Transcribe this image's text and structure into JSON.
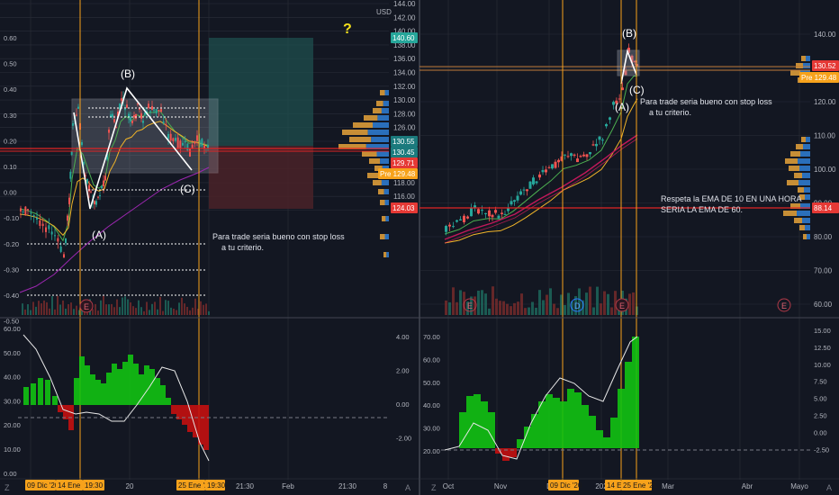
{
  "colors": {
    "background": "#131722",
    "grid": "#2a2e39",
    "panel_divider": "#434651",
    "axis_text": "#b2b5be",
    "vline": "#f7a21b",
    "red_line": "#e02424",
    "candle_up": "#26a69a",
    "candle_down": "#ef5350",
    "ema_fast": "#4caf50",
    "ema_mid": "#f0b429",
    "ema_slow": "#c2185b",
    "ema_purple": "#9c27b0",
    "osc_up": "#12c212",
    "osc_down": "#c41010",
    "osc_line": "#e8e8e8",
    "label_green": "#26a69a",
    "label_red": "#e53935",
    "label_orange": "#f7a21b",
    "label_teal": "#1b7a7d",
    "label_brown": "#c17b3a",
    "question_mark": "#f5e11b"
  },
  "left_chart": {
    "price_axis": {
      "currency": "USD",
      "ticks": [
        "144.00",
        "142.00",
        "140.00",
        "138.00",
        "136.00",
        "134.00",
        "132.00",
        "130.00",
        "128.00",
        "126.00",
        "124.00",
        "122.00",
        "120.00",
        "118.00",
        "116.00",
        "114.00"
      ]
    },
    "left_axis_ticks": [
      "0.60",
      "0.50",
      "0.40",
      "0.30",
      "0.20",
      "0.10",
      "0.00",
      "-0.10",
      "-0.20",
      "-0.30",
      "-0.40",
      "-0.50"
    ],
    "price_labels": [
      "140.60",
      "130.55",
      "130.45",
      "129.71",
      "129.48",
      "124.03"
    ],
    "pre_tag": "Pre",
    "wave_labels": [
      "(A)",
      "(B)",
      "(C)"
    ],
    "earnings_tag": "E",
    "annotation": [
      "Para trade seria bueno con stop loss",
      "a tu criterio."
    ],
    "question": "?",
    "osc_left_ticks": [
      "60.00",
      "50.00",
      "40.00",
      "30.00",
      "20.00",
      "10.00",
      "0.00"
    ],
    "osc_right_ticks": [
      "4.00",
      "2.00",
      "0.00",
      "-2.00"
    ],
    "time_labels": [
      "20",
      "21:30",
      "Feb",
      "21:30",
      "8"
    ],
    "time_tags": [
      "09 Dic '20",
      "14 Ene '21",
      "19:30",
      "25 Ene '21",
      "19:30"
    ]
  },
  "right_chart": {
    "price_axis": {
      "ticks": [
        "140.00",
        "130.00",
        "120.00",
        "110.00",
        "100.00",
        "90.00",
        "80.00",
        "70.00",
        "60.00"
      ]
    },
    "price_labels": [
      "130.52",
      "129.48",
      "88.14"
    ],
    "pre_tag": "Pre",
    "wave_labels": [
      "(B)",
      "(A)",
      "(C)"
    ],
    "annotation": [
      "Para trade seria bueno con stop loss",
      "a tu criterio."
    ],
    "annotation2": [
      "Respeta la EMA DE 10 EN UNA HORA",
      "SERIA LA EMA DE 60."
    ],
    "event_tags": [
      "E",
      "D",
      "E",
      "E"
    ],
    "osc_left_ticks": [
      "70.00",
      "60.00",
      "50.00",
      "40.00",
      "30.00",
      "20.00"
    ],
    "osc_right_ticks": [
      "15.00",
      "12.50",
      "10.00",
      "7.50",
      "5.00",
      "2.50",
      "0.00",
      "-2.50"
    ],
    "time_labels": [
      "Oct",
      "Nov",
      "D",
      "202",
      "Mar",
      "Abr",
      "Mayo"
    ],
    "time_tags": [
      "09 Dic '20",
      "14 E",
      "25 Ene '21"
    ]
  },
  "axis_icons": [
    "zoom-icon",
    "auto-scale-icon"
  ],
  "axis_icon_glyphs": [
    "Z",
    "A"
  ]
}
